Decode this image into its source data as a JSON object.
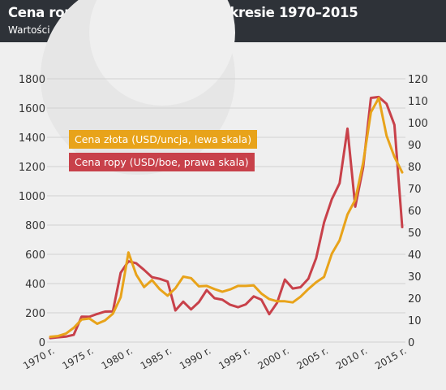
{
  "header": {
    "title": "Cena ropy naftowej i złota w okresie 1970–2015",
    "subtitle": "Wartości średnioroczne"
  },
  "colors": {
    "gold": "#e8a31a",
    "oil": "#c8414a",
    "header_bg": "#2e3238",
    "plot_bg": "#efefef",
    "grid": "#d2d2d2"
  },
  "chart_data": {
    "type": "line",
    "title": "Cena ropy naftowej i złota w okresie 1970–2015",
    "subtitle": "Wartości średnioroczne",
    "x": [
      1970,
      1971,
      1972,
      1973,
      1974,
      1975,
      1976,
      1977,
      1978,
      1979,
      1980,
      1981,
      1982,
      1983,
      1984,
      1985,
      1986,
      1987,
      1988,
      1989,
      1990,
      1991,
      1992,
      1993,
      1994,
      1995,
      1996,
      1997,
      1998,
      1999,
      2000,
      2001,
      2002,
      2003,
      2004,
      2005,
      2006,
      2007,
      2008,
      2009,
      2010,
      2011,
      2012,
      2013,
      2014,
      2015
    ],
    "x_tick_labels": [
      "1970 r.",
      "1975 r.",
      "1980 r.",
      "1985 r.",
      "1990 r.",
      "1995 r.",
      "2000 r.",
      "2005 r.",
      "2010 r.",
      "2015 r."
    ],
    "x_tick_years": [
      1970,
      1975,
      1980,
      1985,
      1990,
      1995,
      2000,
      2005,
      2010,
      2015
    ],
    "ylim_left": [
      0,
      1800
    ],
    "yticks_left": [
      0,
      200,
      400,
      600,
      800,
      1000,
      1200,
      1400,
      1600,
      1800
    ],
    "ylim_right": [
      0,
      120
    ],
    "yticks_right": [
      0,
      10,
      20,
      30,
      40,
      50,
      60,
      70,
      80,
      90,
      100,
      110,
      120
    ],
    "grid": true,
    "series": [
      {
        "name": "Cena złota (USD/uncja, lewa skala)",
        "axis": "left",
        "color": "#e8a31a",
        "values": [
          36,
          41,
          58,
          97,
          154,
          161,
          125,
          148,
          194,
          306,
          613,
          460,
          376,
          424,
          361,
          317,
          368,
          447,
          437,
          381,
          384,
          362,
          344,
          360,
          384,
          384,
          388,
          331,
          294,
          279,
          279,
          271,
          310,
          363,
          409,
          445,
          604,
          696,
          872,
          972,
          1225,
          1571,
          1669,
          1411,
          1266,
          1160
        ]
      },
      {
        "name": "Cena ropy (USD/boe, prawa skala)",
        "axis": "right",
        "color": "#c8414a",
        "values": [
          1.8,
          2.2,
          2.5,
          3.3,
          11.6,
          11.5,
          12.8,
          13.9,
          14.0,
          31.6,
          36.8,
          35.9,
          32.9,
          29.6,
          28.8,
          27.6,
          14.4,
          18.4,
          14.9,
          18.2,
          23.7,
          20.0,
          19.3,
          17.0,
          15.9,
          17.2,
          20.8,
          19.3,
          12.7,
          17.9,
          28.5,
          24.4,
          25.0,
          28.9,
          38.3,
          54.5,
          65.1,
          72.4,
          97.3,
          61.7,
          79.5,
          111.3,
          111.7,
          108.6,
          99.0,
          52.4
        ]
      }
    ],
    "legend": "top-left"
  }
}
